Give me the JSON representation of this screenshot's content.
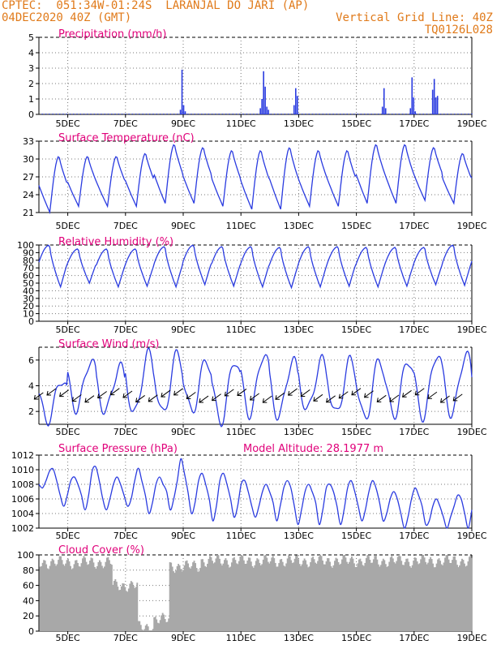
{
  "header": {
    "line1": "CPTEC:  051:34W-01:24S  LARANJAL DO JARI (AP)",
    "line2_left": "04DEC2020 40Z (GMT)",
    "line2_right": "Vertical Grid Line: 40Z",
    "line3_right": "TQ0126L028"
  },
  "colors": {
    "header": "#e07a1a",
    "title": "#e0007a",
    "line": "#2a3be0",
    "cloud": "#a8a8a8",
    "wind_arrow": "#000000"
  },
  "x_ticks": [
    "5DEC",
    "7DEC",
    "9DEC",
    "11DEC",
    "13DEC",
    "15DEC",
    "17DEC",
    "19DEC"
  ],
  "panels": {
    "precip": {
      "title": "Precipitation (mm/h)"
    },
    "temp": {
      "title": "Surface Temperature (nC)"
    },
    "rh": {
      "title": "Relative Humidity (%)"
    },
    "wind": {
      "title": "Surface Wind (m/s)"
    },
    "pres": {
      "title": "Surface Pressure (hPa)",
      "extra": "Model Altitude: 28.1977 m"
    },
    "cloud": {
      "title": "Cloud Cover (%)"
    }
  },
  "chart_data": [
    {
      "id": "precip",
      "type": "bar",
      "unit_label": "Precipitation (mm/h)",
      "x_range_days": [
        4.0,
        19.0
      ],
      "ylim": [
        0,
        5
      ],
      "yticks": [
        0,
        1,
        2,
        3,
        4,
        5
      ],
      "events": [
        {
          "x": 8.88,
          "values": [
            0.3,
            2.9,
            0.6,
            0.2
          ]
        },
        {
          "x": 11.65,
          "values": [
            0.4,
            1.0,
            2.8,
            1.8,
            0.5,
            0.3
          ]
        },
        {
          "x": 12.82,
          "values": [
            0.6,
            1.7,
            1.2
          ]
        },
        {
          "x": 15.88,
          "values": [
            0.5,
            1.7,
            0.4
          ]
        },
        {
          "x": 16.85,
          "values": [
            0.4,
            2.4,
            1.1,
            0.2
          ]
        },
        {
          "x": 17.62,
          "values": [
            1.6,
            2.3,
            1.1,
            1.2
          ]
        }
      ],
      "background_level": 0.05
    },
    {
      "id": "temp",
      "type": "line",
      "unit_label": "Surface Temperature (nC)",
      "x_range_days": [
        4.0,
        19.0
      ],
      "ylim": [
        21,
        33
      ],
      "yticks": [
        21,
        24,
        27,
        30,
        33
      ],
      "daily_max": [
        30.5,
        30.5,
        30.5,
        31,
        32.5,
        32,
        31.5,
        31.5,
        32,
        31.5,
        31.5,
        32.5,
        32.5,
        32,
        31,
        32
      ],
      "daily_min": [
        21,
        22,
        22,
        22,
        22.5,
        22.5,
        22,
        21.5,
        21.5,
        22,
        22,
        22.5,
        22.5,
        23,
        22.5,
        22
      ]
    },
    {
      "id": "rh",
      "type": "line",
      "unit_label": "Relative Humidity (%)",
      "x_range_days": [
        4.0,
        19.0
      ],
      "ylim": [
        0,
        100
      ],
      "yticks": [
        0,
        10,
        20,
        30,
        40,
        50,
        60,
        70,
        80,
        90,
        100
      ],
      "daily_max": [
        100,
        95,
        95,
        95,
        98,
        100,
        98,
        98,
        97,
        98,
        98,
        97,
        97,
        97,
        100,
        100
      ],
      "daily_min": [
        45,
        50,
        45,
        46,
        45,
        48,
        46,
        45,
        44,
        45,
        46,
        45,
        46,
        48,
        47,
        48
      ]
    },
    {
      "id": "wind",
      "type": "line",
      "unit_label": "Surface Wind (m/s)",
      "x_range_days": [
        4.0,
        19.0
      ],
      "ylim": [
        1,
        7
      ],
      "yticks": [
        2,
        4,
        6
      ],
      "daily_max": [
        4.5,
        6.0,
        5.5,
        6.5,
        6.5,
        6.0,
        6.0,
        6.5,
        6.0,
        6.0,
        6.0,
        6.0,
        6.0,
        6.5,
        6.5,
        6.0
      ],
      "daily_min": [
        1.3,
        2.2,
        2.0,
        1.8,
        1.8,
        2.0,
        1.2,
        1.8,
        1.6,
        2.1,
        1.8,
        1.4,
        1.7,
        1.6,
        1.8,
        1.3
      ],
      "arrow_direction": "from northeast (pointing southwest)"
    },
    {
      "id": "pres",
      "type": "line",
      "unit_label": "Surface Pressure (hPa)",
      "x_range_days": [
        4.0,
        19.0
      ],
      "ylim": [
        1002,
        1012
      ],
      "yticks": [
        1002,
        1004,
        1006,
        1008,
        1010,
        1012
      ],
      "series": [
        1008.0,
        1007.5,
        1008.5,
        1009.8,
        1010.1,
        1008.5,
        1006.5,
        1005.0,
        1006.5,
        1008.5,
        1009.0,
        1008.0,
        1006.5,
        1004.5,
        1006.5,
        1009.8,
        1010.4,
        1008.5,
        1006.0,
        1004.5,
        1006.0,
        1008.0,
        1009.0,
        1008.0,
        1006.5,
        1005.0,
        1006.0,
        1008.5,
        1010.2,
        1008.5,
        1006.5,
        1004.0,
        1005.5,
        1008.0,
        1009.0,
        1008.0,
        1007.0,
        1004.5,
        1006.0,
        1008.5,
        1011.5,
        1009.5,
        1007.0,
        1004.0,
        1005.5,
        1008.5,
        1009.5,
        1008.0,
        1006.0,
        1003.0,
        1005.0,
        1008.5,
        1009.5,
        1008.0,
        1006.0,
        1003.5,
        1005.0,
        1008.0,
        1008.5,
        1007.0,
        1005.0,
        1003.5,
        1005.0,
        1007.0,
        1008.0,
        1007.0,
        1005.5,
        1003.0,
        1005.0,
        1007.5,
        1008.5,
        1007.5,
        1005.0,
        1002.5,
        1004.5,
        1007.0,
        1008.0,
        1007.0,
        1005.5,
        1002.5,
        1004.5,
        1007.5,
        1008.0,
        1007.0,
        1005.0,
        1002.5,
        1004.5,
        1007.5,
        1008.5,
        1007.0,
        1005.0,
        1003.0,
        1004.5,
        1007.0,
        1008.5,
        1007.5,
        1005.5,
        1003.0,
        1004.0,
        1006.0,
        1007.0,
        1006.0,
        1004.0,
        1002.0,
        1003.5,
        1006.0,
        1007.5,
        1006.5,
        1005.0,
        1002.5,
        1003.0,
        1005.0,
        1006.0,
        1005.0,
        1003.5,
        1002.0,
        1003.5,
        1005.0,
        1006.5,
        1006.0,
        1004.0,
        1002.0,
        1004.5
      ]
    },
    {
      "id": "cloud",
      "type": "bar",
      "unit_label": "Cloud Cover (%)",
      "x_range_days": [
        4.0,
        19.0
      ],
      "ylim": [
        0,
        100
      ],
      "yticks": [
        0,
        20,
        40,
        60,
        80,
        100
      ],
      "segments": [
        {
          "from": 4.0,
          "to": 6.5,
          "level": 90
        },
        {
          "from": 6.5,
          "to": 7.4,
          "level": 60
        },
        {
          "from": 7.4,
          "to": 7.95,
          "level": 5
        },
        {
          "from": 7.95,
          "to": 8.5,
          "level": 15
        },
        {
          "from": 8.5,
          "to": 9.6,
          "level": 85
        },
        {
          "from": 9.6,
          "to": 19.0,
          "level": 92
        }
      ]
    }
  ]
}
